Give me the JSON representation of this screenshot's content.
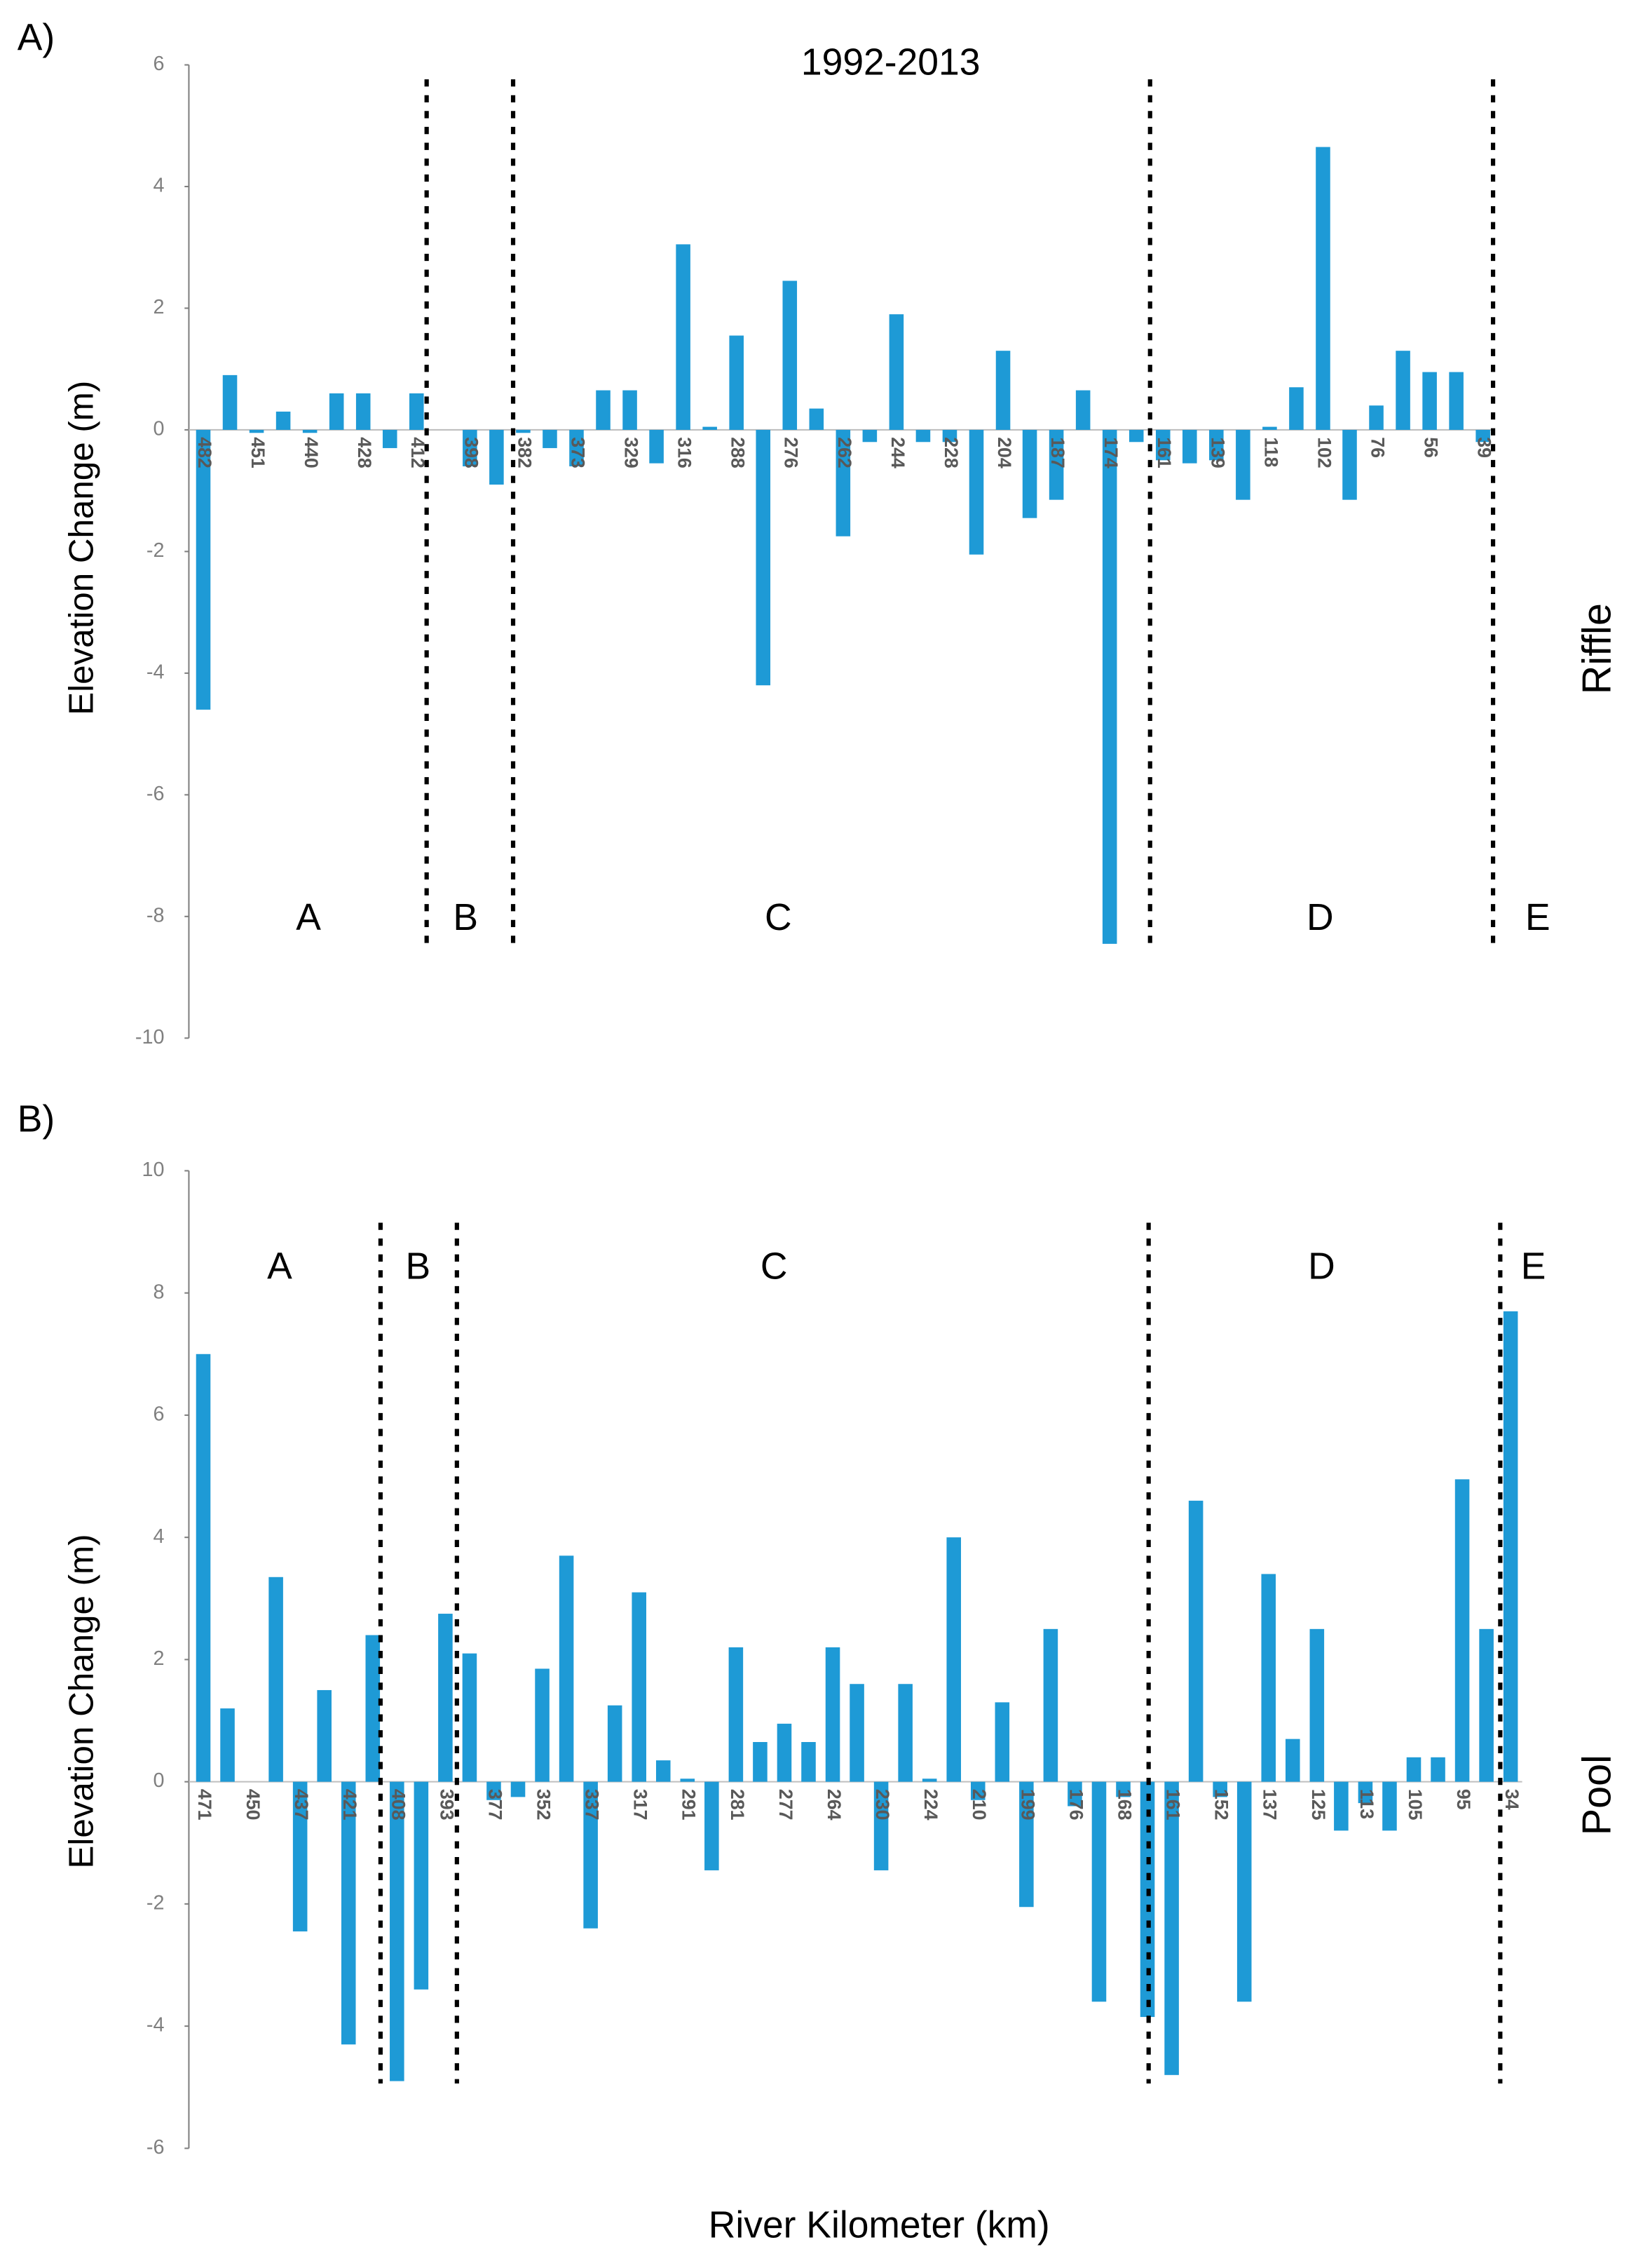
{
  "chart_data": [
    {
      "type": "bar",
      "panel_label": "A)",
      "title": "1992-2013",
      "side_label": "Riffle",
      "y_label": "Elevation Change (m)",
      "region_labels": [
        "A",
        "B",
        "C",
        "D",
        "E"
      ],
      "color": "#1e9ad6",
      "ylim": [
        -10,
        6
      ],
      "yticks": [
        -10,
        -8,
        -6,
        -4,
        -2,
        0,
        2,
        4,
        6
      ],
      "categories": [
        "482",
        null,
        "451",
        null,
        "440",
        null,
        "428",
        null,
        "412",
        null,
        "398",
        null,
        "382",
        null,
        "373",
        null,
        "329",
        null,
        "316",
        null,
        "288",
        null,
        "276",
        null,
        "262",
        null,
        "244",
        null,
        "228",
        null,
        "204",
        null,
        "187",
        null,
        "174",
        null,
        "161",
        null,
        "139",
        null,
        "118",
        null,
        "102",
        null,
        "76",
        null,
        "56",
        null,
        "39"
      ],
      "values": [
        -4.6,
        0.9,
        -0.05,
        0.3,
        -0.05,
        0.6,
        0.6,
        -0.3,
        0.6,
        0,
        -0.6,
        -0.9,
        -0.05,
        -0.3,
        -0.6,
        0.65,
        0.65,
        -0.55,
        3.05,
        0.05,
        1.55,
        -4.2,
        2.45,
        0.35,
        -1.75,
        -0.2,
        1.9,
        -0.2,
        -0.2,
        -2.05,
        1.3,
        -1.45,
        -1.15,
        0.65,
        -8.45,
        -0.2,
        -0.5,
        -0.55,
        -0.5,
        -1.15,
        0.05,
        0.7,
        4.65,
        -1.15,
        0.4,
        1.3,
        0.95,
        0.95,
        -0.2
      ]
    },
    {
      "type": "bar",
      "panel_label": "B)",
      "side_label": "Pool",
      "y_label": "Elevation Change (m)",
      "x_label": "River Kilometer (km)",
      "region_labels": [
        "A",
        "B",
        "C",
        "D",
        "E"
      ],
      "color": "#1e9ad6",
      "ylim": [
        -6,
        10
      ],
      "yticks": [
        -6,
        -4,
        -2,
        0,
        2,
        4,
        6,
        8,
        10
      ],
      "categories": [
        "471",
        null,
        "450",
        null,
        "437",
        null,
        "421",
        null,
        "408",
        null,
        "393",
        null,
        "377",
        null,
        "352",
        null,
        "337",
        null,
        "317",
        null,
        "291",
        null,
        "281",
        null,
        "277",
        null,
        "264",
        null,
        "230",
        null,
        "224",
        null,
        "210",
        null,
        "199",
        null,
        "176",
        null,
        "168",
        null,
        "161",
        null,
        "152",
        null,
        "137",
        null,
        "125",
        null,
        "113",
        null,
        "105",
        null,
        "95",
        null,
        "34"
      ],
      "values": [
        7.0,
        1.2,
        0,
        3.35,
        -2.45,
        1.5,
        -4.3,
        2.4,
        -4.9,
        -3.4,
        2.75,
        2.1,
        -0.3,
        -0.25,
        1.85,
        3.7,
        -2.4,
        1.25,
        3.1,
        0.35,
        0.05,
        -1.45,
        2.2,
        0.65,
        0.95,
        0.65,
        2.2,
        1.6,
        -1.45,
        1.6,
        0.05,
        4.0,
        -0.3,
        1.3,
        -2.05,
        2.5,
        -0.4,
        -3.6,
        -0.25,
        -3.85,
        -4.8,
        4.6,
        -0.25,
        -3.6,
        3.4,
        0.7,
        2.5,
        -0.8,
        -0.35,
        -0.8,
        0.4,
        0.4,
        4.95,
        2.5,
        7.7
      ]
    }
  ]
}
